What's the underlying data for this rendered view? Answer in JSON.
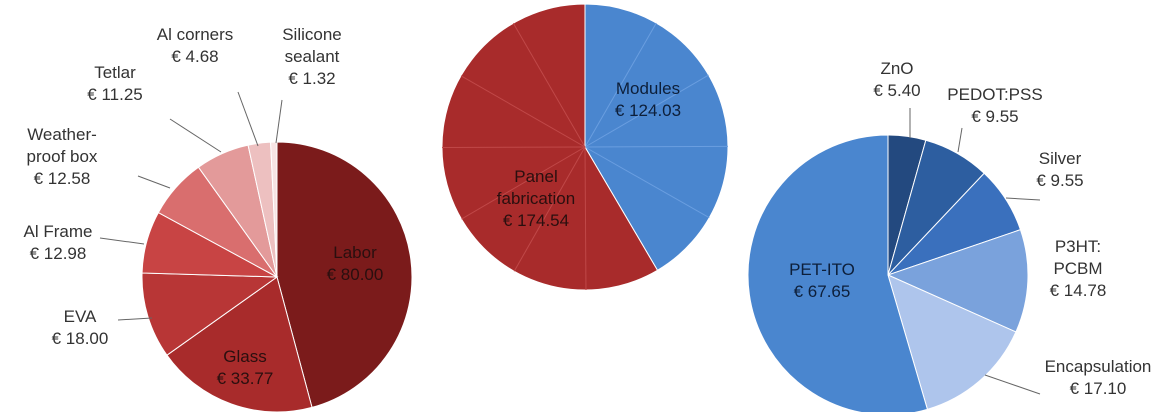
{
  "chart_data": [
    {
      "type": "pie",
      "currency": "€",
      "colors": [
        "#7b1b1b",
        "#a82b2b",
        "#b83636",
        "#c84444",
        "#d96e6e",
        "#e39a9a",
        "#edc0c0",
        "#f7e3e3"
      ],
      "slices": [
        {
          "label": "Labor",
          "value": 80.0,
          "value_text": "€ 80.00"
        },
        {
          "label": "Glass",
          "value": 33.77,
          "value_text": "€ 33.77"
        },
        {
          "label": "EVA",
          "value": 18.0,
          "value_text": "€ 18.00"
        },
        {
          "label": "Al Frame",
          "value": 12.98,
          "value_text": "€ 12.98"
        },
        {
          "label": "Weather-proof box",
          "label_lines": [
            "Weather-",
            "proof box"
          ],
          "value": 12.58,
          "value_text": "€ 12.58"
        },
        {
          "label": "Tetlar",
          "value": 11.25,
          "value_text": "€ 11.25"
        },
        {
          "label": "Al corners",
          "value": 4.68,
          "value_text": "€ 4.68"
        },
        {
          "label": "Silicone sealant",
          "label_lines": [
            "Silicone",
            "sealant"
          ],
          "value": 1.32,
          "value_text": "€ 1.32"
        }
      ]
    },
    {
      "type": "pie",
      "currency": "€",
      "colors": [
        "#4a86cf",
        "#a82b2b"
      ],
      "slices": [
        {
          "label": "Modules",
          "value": 124.03,
          "value_text": "€ 124.03"
        },
        {
          "label": "Panel fabrication",
          "label_lines": [
            "Panel",
            "fabrication"
          ],
          "value": 174.54,
          "value_text": "€ 174.54"
        }
      ]
    },
    {
      "type": "pie",
      "currency": "€",
      "colors": [
        "#23497f",
        "#2d5ea0",
        "#3a70bd",
        "#7aa2dc",
        "#aec5ec",
        "#4a86cf"
      ],
      "slices": [
        {
          "label": "ZnO",
          "value": 5.4,
          "value_text": "€ 5.40"
        },
        {
          "label": "PEDOT:PSS",
          "value": 9.55,
          "value_text": "€ 9.55"
        },
        {
          "label": "Silver",
          "value": 9.55,
          "value_text": "€ 9.55"
        },
        {
          "label": "P3HT: PCBM",
          "label_lines": [
            "P3HT:",
            "PCBM"
          ],
          "value": 14.78,
          "value_text": "€ 14.78"
        },
        {
          "label": "Encapsulation",
          "value": 17.1,
          "value_text": "€ 17.10"
        },
        {
          "label": "PET-ITO",
          "value": 67.65,
          "value_text": "€ 67.65"
        }
      ]
    }
  ]
}
